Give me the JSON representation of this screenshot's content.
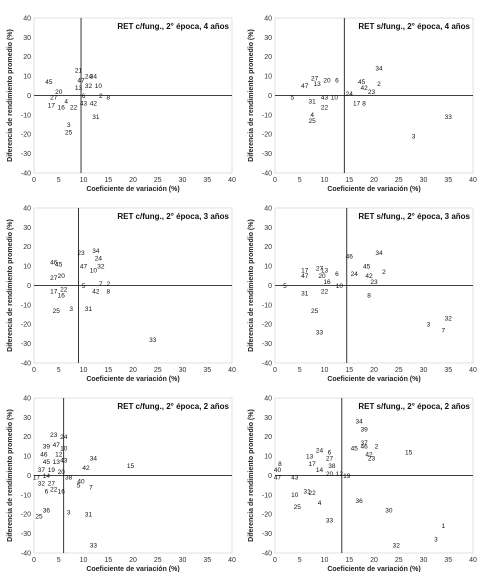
{
  "chart_data": [
    {
      "type": "scatter",
      "title": "RET c/fung., 2° época, 4 años",
      "xlabel": "Coeficiente de variación (%)",
      "ylabel": "Diferencia de rendimiento promedio (%)",
      "xlim": [
        0,
        40
      ],
      "ylim": [
        -40,
        40
      ],
      "xticks": [
        "0",
        "5",
        "10",
        "15",
        "20",
        "25",
        "30",
        "35",
        "40"
      ],
      "yticks": [
        "40",
        "30",
        "20",
        "10",
        "0",
        "-10",
        "-20",
        "-30",
        "-40"
      ],
      "ref_lines": {
        "x": 9.5,
        "y": 0
      },
      "points": [
        {
          "label": "45",
          "x": 3,
          "y": 7
        },
        {
          "label": "21",
          "x": 9,
          "y": 13
        },
        {
          "label": "34",
          "x": 12,
          "y": 10
        },
        {
          "label": "24",
          "x": 11,
          "y": 10
        },
        {
          "label": "47",
          "x": 9.5,
          "y": 8
        },
        {
          "label": "13",
          "x": 9,
          "y": 4
        },
        {
          "label": "32",
          "x": 11,
          "y": 5
        },
        {
          "label": "10",
          "x": 13,
          "y": 5
        },
        {
          "label": "20",
          "x": 5,
          "y": 2
        },
        {
          "label": "27",
          "x": 4,
          "y": -1
        },
        {
          "label": "4",
          "x": 6.5,
          "y": -3
        },
        {
          "label": "6",
          "x": 10,
          "y": 0
        },
        {
          "label": "2",
          "x": 13.5,
          "y": 0
        },
        {
          "label": "8",
          "x": 15,
          "y": -1
        },
        {
          "label": "17",
          "x": 3.5,
          "y": -5
        },
        {
          "label": "16",
          "x": 5.5,
          "y": -6
        },
        {
          "label": "22",
          "x": 8,
          "y": -6
        },
        {
          "label": "43",
          "x": 10,
          "y": -4
        },
        {
          "label": "42",
          "x": 12,
          "y": -4
        },
        {
          "label": "31",
          "x": 12.5,
          "y": -11
        },
        {
          "label": "3",
          "x": 7,
          "y": -15
        },
        {
          "label": "25",
          "x": 7,
          "y": -19
        }
      ]
    },
    {
      "type": "scatter",
      "title": "RET s/fung., 2° época, 4 años",
      "xlabel": "Coeficiente de variación (%)",
      "ylabel": "Diferencia de rendimiento promedio (%)",
      "xlim": [
        0,
        40
      ],
      "ylim": [
        -40,
        40
      ],
      "xticks": [
        "0",
        "5",
        "10",
        "15",
        "20",
        "25",
        "30",
        "35",
        "40"
      ],
      "yticks": [
        "40",
        "30",
        "20",
        "10",
        "0",
        "-10",
        "-20",
        "-30",
        "-40"
      ],
      "ref_lines": {
        "x": 14,
        "y": 0
      },
      "points": [
        {
          "label": "34",
          "x": 21,
          "y": 14
        },
        {
          "label": "27",
          "x": 8,
          "y": 9
        },
        {
          "label": "20",
          "x": 10.5,
          "y": 8
        },
        {
          "label": "6",
          "x": 12.5,
          "y": 8
        },
        {
          "label": "47",
          "x": 6,
          "y": 5
        },
        {
          "label": "13",
          "x": 8.5,
          "y": 6
        },
        {
          "label": "45",
          "x": 17.5,
          "y": 7
        },
        {
          "label": "2",
          "x": 21,
          "y": 6
        },
        {
          "label": "42",
          "x": 18,
          "y": 4
        },
        {
          "label": "23",
          "x": 19.5,
          "y": 2
        },
        {
          "label": "24",
          "x": 15,
          "y": 1
        },
        {
          "label": "5",
          "x": 3.5,
          "y": -1
        },
        {
          "label": "43",
          "x": 10,
          "y": -1
        },
        {
          "label": "10",
          "x": 12,
          "y": -1
        },
        {
          "label": "31",
          "x": 7.5,
          "y": -3
        },
        {
          "label": "22",
          "x": 10,
          "y": -6
        },
        {
          "label": "17",
          "x": 16.5,
          "y": -4
        },
        {
          "label": "8",
          "x": 18,
          "y": -4
        },
        {
          "label": "4",
          "x": 7.5,
          "y": -10
        },
        {
          "label": "25",
          "x": 7.5,
          "y": -13
        },
        {
          "label": "33",
          "x": 35,
          "y": -11
        },
        {
          "label": "3",
          "x": 28,
          "y": -21
        }
      ]
    },
    {
      "type": "scatter",
      "title": "RET c/fung., 2° época, 3 años",
      "xlabel": "Coeficiente de variación (%)",
      "ylabel": "Diferencia de rendimiento promedio (%)",
      "xlim": [
        0,
        40
      ],
      "ylim": [
        -40,
        40
      ],
      "xticks": [
        "0",
        "5",
        "10",
        "15",
        "20",
        "25",
        "30",
        "35",
        "40"
      ],
      "yticks": [
        "40",
        "30",
        "20",
        "10",
        "0",
        "-10",
        "-20",
        "-30",
        "-40"
      ],
      "ref_lines": {
        "x": 9,
        "y": 0
      },
      "points": [
        {
          "label": "46",
          "x": 4,
          "y": 12
        },
        {
          "label": "45",
          "x": 5,
          "y": 11
        },
        {
          "label": "23",
          "x": 9.5,
          "y": 17
        },
        {
          "label": "34",
          "x": 12.5,
          "y": 18
        },
        {
          "label": "24",
          "x": 13,
          "y": 14
        },
        {
          "label": "47",
          "x": 10,
          "y": 10
        },
        {
          "label": "32",
          "x": 13.5,
          "y": 10
        },
        {
          "label": "10",
          "x": 12,
          "y": 8
        },
        {
          "label": "27",
          "x": 4,
          "y": 4
        },
        {
          "label": "20",
          "x": 5.5,
          "y": 5
        },
        {
          "label": "5",
          "x": 10,
          "y": 0
        },
        {
          "label": "7",
          "x": 13.5,
          "y": 1
        },
        {
          "label": "2",
          "x": 15,
          "y": 1
        },
        {
          "label": "17",
          "x": 4,
          "y": -3
        },
        {
          "label": "22",
          "x": 6,
          "y": -2
        },
        {
          "label": "16",
          "x": 5.5,
          "y": -5
        },
        {
          "label": "42",
          "x": 12.5,
          "y": -3
        },
        {
          "label": "8",
          "x": 15,
          "y": -3
        },
        {
          "label": "25",
          "x": 4.5,
          "y": -13
        },
        {
          "label": "3",
          "x": 7.5,
          "y": -12
        },
        {
          "label": "31",
          "x": 11,
          "y": -12
        },
        {
          "label": "33",
          "x": 24,
          "y": -28
        }
      ]
    },
    {
      "type": "scatter",
      "title": "RET s/fung., 2° época, 3 años",
      "xlabel": "Coeficiente de variación (%)",
      "ylabel": "Diferencia de rendimiento promedio (%)",
      "xlim": [
        0,
        40
      ],
      "ylim": [
        -40,
        40
      ],
      "xticks": [
        "0",
        "5",
        "10",
        "15",
        "20",
        "25",
        "30",
        "35",
        "40"
      ],
      "yticks": [
        "40",
        "30",
        "20",
        "10",
        "0",
        "-10",
        "-20",
        "-30",
        "-40"
      ],
      "ref_lines": {
        "x": 14.5,
        "y": 0
      },
      "points": [
        {
          "label": "46",
          "x": 15,
          "y": 15
        },
        {
          "label": "34",
          "x": 21,
          "y": 17
        },
        {
          "label": "45",
          "x": 18.5,
          "y": 10
        },
        {
          "label": "17",
          "x": 6,
          "y": 8
        },
        {
          "label": "27",
          "x": 9,
          "y": 9
        },
        {
          "label": "13",
          "x": 10,
          "y": 8
        },
        {
          "label": "47",
          "x": 6,
          "y": 5
        },
        {
          "label": "20",
          "x": 9.5,
          "y": 5
        },
        {
          "label": "6",
          "x": 12.5,
          "y": 6
        },
        {
          "label": "24",
          "x": 16,
          "y": 6
        },
        {
          "label": "42",
          "x": 19,
          "y": 5
        },
        {
          "label": "2",
          "x": 22,
          "y": 7
        },
        {
          "label": "16",
          "x": 10.5,
          "y": 2
        },
        {
          "label": "23",
          "x": 20,
          "y": 2
        },
        {
          "label": "5",
          "x": 2,
          "y": 0
        },
        {
          "label": "10",
          "x": 13,
          "y": 0
        },
        {
          "label": "31",
          "x": 6,
          "y": -4
        },
        {
          "label": "22",
          "x": 10,
          "y": -3
        },
        {
          "label": "8",
          "x": 19,
          "y": -5
        },
        {
          "label": "25",
          "x": 8,
          "y": -13
        },
        {
          "label": "33",
          "x": 9,
          "y": -24
        },
        {
          "label": "32",
          "x": 35,
          "y": -17
        },
        {
          "label": "3",
          "x": 31,
          "y": -20
        },
        {
          "label": "7",
          "x": 34,
          "y": -23
        }
      ]
    },
    {
      "type": "scatter",
      "title": "RET c/fung., 2° época, 2 años",
      "xlabel": "Coeficiente de variación (%)",
      "ylabel": "Diferencia de rendimiento promedio (%)",
      "xlim": [
        0,
        40
      ],
      "ylim": [
        -40,
        40
      ],
      "xticks": [
        "0",
        "5",
        "10",
        "15",
        "20",
        "25",
        "30",
        "35",
        "40"
      ],
      "yticks": [
        "40",
        "30",
        "20",
        "10",
        "0",
        "-10",
        "-20",
        "-30",
        "-40"
      ],
      "ref_lines": {
        "x": 6,
        "y": 0
      },
      "points": [
        {
          "label": "23",
          "x": 4,
          "y": 21
        },
        {
          "label": "24",
          "x": 6,
          "y": 20
        },
        {
          "label": "39",
          "x": 2.5,
          "y": 15
        },
        {
          "label": "47",
          "x": 4.5,
          "y": 16
        },
        {
          "label": "10",
          "x": 6,
          "y": 14
        },
        {
          "label": "46",
          "x": 2,
          "y": 11
        },
        {
          "label": "12",
          "x": 5,
          "y": 11
        },
        {
          "label": "45",
          "x": 2.5,
          "y": 7
        },
        {
          "label": "13",
          "x": 4.5,
          "y": 7
        },
        {
          "label": "43",
          "x": 6,
          "y": 8
        },
        {
          "label": "37",
          "x": 1.5,
          "y": 3
        },
        {
          "label": "19",
          "x": 3.5,
          "y": 3
        },
        {
          "label": "20",
          "x": 5.5,
          "y": 2
        },
        {
          "label": "14",
          "x": 2.5,
          "y": 0
        },
        {
          "label": "17",
          "x": 0.5,
          "y": -1
        },
        {
          "label": "38",
          "x": 7,
          "y": -1
        },
        {
          "label": "34",
          "x": 12,
          "y": 9
        },
        {
          "label": "42",
          "x": 10.5,
          "y": 4
        },
        {
          "label": "15",
          "x": 19.5,
          "y": 5
        },
        {
          "label": "32",
          "x": 1.5,
          "y": -4
        },
        {
          "label": "27",
          "x": 3.5,
          "y": -4
        },
        {
          "label": "40",
          "x": 9.5,
          "y": -3
        },
        {
          "label": "5",
          "x": 9,
          "y": -5
        },
        {
          "label": "7",
          "x": 11.5,
          "y": -6
        },
        {
          "label": "6",
          "x": 2.5,
          "y": -8
        },
        {
          "label": "22",
          "x": 4,
          "y": -7
        },
        {
          "label": "16",
          "x": 5.5,
          "y": -8
        },
        {
          "label": "36",
          "x": 2.5,
          "y": -18
        },
        {
          "label": "25",
          "x": 1,
          "y": -21
        },
        {
          "label": "3",
          "x": 7,
          "y": -19
        },
        {
          "label": "31",
          "x": 11,
          "y": -20
        },
        {
          "label": "33",
          "x": 12,
          "y": -36
        }
      ]
    },
    {
      "type": "scatter",
      "title": "RET s/fung., 2° época, 2 años",
      "xlabel": "Coeficiente de variación (%)",
      "ylabel": "Diferencia de rendimiento promedio (%)",
      "xlim": [
        0,
        40
      ],
      "ylim": [
        -40,
        40
      ],
      "xticks": [
        "0",
        "5",
        "10",
        "15",
        "20",
        "25",
        "30",
        "35",
        "40"
      ],
      "yticks": [
        "40",
        "30",
        "20",
        "10",
        "0",
        "-10",
        "-20",
        "-30",
        "-40"
      ],
      "ref_lines": {
        "x": 13.5,
        "y": 0
      },
      "points": [
        {
          "label": "34",
          "x": 17,
          "y": 28
        },
        {
          "label": "39",
          "x": 18,
          "y": 24
        },
        {
          "label": "37",
          "x": 18,
          "y": 17
        },
        {
          "label": "45",
          "x": 16,
          "y": 14
        },
        {
          "label": "46",
          "x": 18,
          "y": 15
        },
        {
          "label": "2",
          "x": 20.5,
          "y": 15
        },
        {
          "label": "24",
          "x": 9,
          "y": 13
        },
        {
          "label": "6",
          "x": 11,
          "y": 12
        },
        {
          "label": "13",
          "x": 7,
          "y": 10
        },
        {
          "label": "27",
          "x": 11,
          "y": 9
        },
        {
          "label": "42",
          "x": 19,
          "y": 11
        },
        {
          "label": "23",
          "x": 19.5,
          "y": 9
        },
        {
          "label": "15",
          "x": 27,
          "y": 12
        },
        {
          "label": "8",
          "x": 1,
          "y": 6
        },
        {
          "label": "17",
          "x": 7.5,
          "y": 6
        },
        {
          "label": "38",
          "x": 11.5,
          "y": 5
        },
        {
          "label": "14",
          "x": 9,
          "y": 3
        },
        {
          "label": "40",
          "x": 0.5,
          "y": 3
        },
        {
          "label": "20",
          "x": 11,
          "y": 1
        },
        {
          "label": "12",
          "x": 13,
          "y": 1
        },
        {
          "label": "19",
          "x": 14.5,
          "y": 0
        },
        {
          "label": "47",
          "x": 0.5,
          "y": -1
        },
        {
          "label": "43",
          "x": 4,
          "y": -1
        },
        {
          "label": "31",
          "x": 6.5,
          "y": -8
        },
        {
          "label": "22",
          "x": 7.5,
          "y": -9
        },
        {
          "label": "10",
          "x": 4,
          "y": -10
        },
        {
          "label": "4",
          "x": 9,
          "y": -14
        },
        {
          "label": "25",
          "x": 4.5,
          "y": -16
        },
        {
          "label": "36",
          "x": 17,
          "y": -13
        },
        {
          "label": "30",
          "x": 23,
          "y": -18
        },
        {
          "label": "33",
          "x": 11,
          "y": -23
        },
        {
          "label": "1",
          "x": 34,
          "y": -26
        },
        {
          "label": "3",
          "x": 32.5,
          "y": -33
        },
        {
          "label": "32",
          "x": 24.5,
          "y": -36
        }
      ]
    }
  ]
}
